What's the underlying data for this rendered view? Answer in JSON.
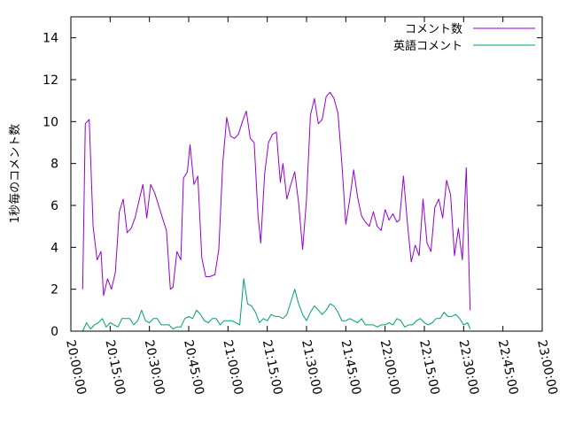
{
  "colors": {
    "series1": "#9400d3",
    "series2": "#009e73",
    "axis": "#000000",
    "background": "#ffffff"
  },
  "chart_data": {
    "type": "line",
    "title": "",
    "xlabel": "",
    "ylabel": "1秒毎のコメント数",
    "xlim": [
      "20:00:00",
      "23:00:00"
    ],
    "ylim": [
      0,
      15
    ],
    "x_ticks": [
      "20:00:00",
      "20:15:00",
      "20:30:00",
      "20:45:00",
      "21:00:00",
      "21:15:00",
      "21:30:00",
      "21:45:00",
      "22:00:00",
      "22:15:00",
      "22:30:00",
      "22:45:00",
      "23:00:00"
    ],
    "y_ticks": [
      0,
      2,
      4,
      6,
      8,
      10,
      12,
      14
    ],
    "grid": false,
    "legend_position": "top-right",
    "series": [
      {
        "name": "コメント数",
        "color": "#9400d3",
        "points": [
          [
            "20:04:30",
            2.0
          ],
          [
            "20:05:30",
            9.9
          ],
          [
            "20:07:00",
            10.1
          ],
          [
            "20:08:30",
            5.0
          ],
          [
            "20:10:00",
            3.4
          ],
          [
            "20:11:30",
            3.8
          ],
          [
            "20:12:30",
            1.7
          ],
          [
            "20:14:00",
            2.5
          ],
          [
            "20:15:30",
            2.0
          ],
          [
            "20:17:00",
            2.8
          ],
          [
            "20:18:30",
            5.7
          ],
          [
            "20:20:00",
            6.3
          ],
          [
            "20:21:30",
            4.7
          ],
          [
            "20:23:00",
            4.9
          ],
          [
            "20:24:30",
            5.4
          ],
          [
            "20:26:00",
            6.2
          ],
          [
            "20:27:30",
            7.0
          ],
          [
            "20:29:00",
            5.4
          ],
          [
            "20:30:30",
            7.0
          ],
          [
            "20:32:00",
            6.6
          ],
          [
            "20:33:30",
            6.0
          ],
          [
            "20:35:00",
            5.4
          ],
          [
            "20:36:30",
            4.8
          ],
          [
            "20:38:00",
            2.0
          ],
          [
            "20:39:00",
            2.1
          ],
          [
            "20:40:30",
            3.8
          ],
          [
            "20:42:00",
            3.4
          ],
          [
            "20:43:00",
            7.3
          ],
          [
            "20:44:30",
            7.6
          ],
          [
            "20:45:30",
            8.9
          ],
          [
            "20:47:00",
            7.0
          ],
          [
            "20:48:30",
            7.4
          ],
          [
            "20:50:00",
            3.5
          ],
          [
            "20:51:30",
            2.6
          ],
          [
            "20:53:00",
            2.6
          ],
          [
            "20:55:00",
            2.7
          ],
          [
            "20:56:30",
            3.9
          ],
          [
            "20:58:00",
            8.0
          ],
          [
            "20:59:30",
            10.2
          ],
          [
            "21:01:00",
            9.3
          ],
          [
            "21:02:30",
            9.2
          ],
          [
            "21:04:00",
            9.4
          ],
          [
            "21:05:30",
            10.0
          ],
          [
            "21:07:00",
            10.5
          ],
          [
            "21:08:30",
            9.2
          ],
          [
            "21:10:00",
            9.0
          ],
          [
            "21:11:30",
            5.5
          ],
          [
            "21:12:30",
            4.2
          ],
          [
            "21:14:00",
            7.5
          ],
          [
            "21:15:30",
            9.0
          ],
          [
            "21:17:00",
            9.4
          ],
          [
            "21:18:30",
            9.5
          ],
          [
            "21:20:00",
            7.1
          ],
          [
            "21:21:00",
            8.0
          ],
          [
            "21:22:30",
            6.3
          ],
          [
            "21:24:00",
            7.0
          ],
          [
            "21:25:30",
            7.6
          ],
          [
            "21:27:00",
            6.1
          ],
          [
            "21:28:30",
            3.9
          ],
          [
            "21:30:00",
            6.3
          ],
          [
            "21:31:30",
            10.3
          ],
          [
            "21:33:00",
            11.1
          ],
          [
            "21:34:30",
            9.9
          ],
          [
            "21:36:00",
            10.1
          ],
          [
            "21:37:30",
            11.2
          ],
          [
            "21:39:00",
            11.4
          ],
          [
            "21:40:30",
            11.1
          ],
          [
            "21:42:00",
            10.4
          ],
          [
            "21:43:30",
            8.0
          ],
          [
            "21:45:00",
            5.1
          ],
          [
            "21:46:30",
            6.3
          ],
          [
            "21:48:00",
            7.7
          ],
          [
            "21:49:30",
            6.4
          ],
          [
            "21:51:00",
            5.5
          ],
          [
            "21:52:30",
            5.2
          ],
          [
            "21:54:00",
            5.0
          ],
          [
            "21:55:30",
            5.7
          ],
          [
            "21:57:00",
            5.0
          ],
          [
            "21:58:30",
            4.8
          ],
          [
            "22:00:00",
            5.8
          ],
          [
            "22:01:30",
            5.3
          ],
          [
            "22:03:00",
            5.6
          ],
          [
            "22:04:30",
            5.2
          ],
          [
            "22:05:30",
            5.3
          ],
          [
            "22:07:00",
            7.4
          ],
          [
            "22:08:30",
            5.2
          ],
          [
            "22:10:00",
            3.3
          ],
          [
            "22:11:30",
            4.1
          ],
          [
            "22:13:00",
            3.6
          ],
          [
            "22:14:30",
            6.3
          ],
          [
            "22:16:00",
            4.2
          ],
          [
            "22:17:30",
            3.8
          ],
          [
            "22:19:00",
            5.9
          ],
          [
            "22:20:30",
            6.3
          ],
          [
            "22:22:00",
            5.4
          ],
          [
            "22:23:30",
            7.2
          ],
          [
            "22:25:00",
            6.5
          ],
          [
            "22:26:30",
            3.6
          ],
          [
            "22:28:00",
            4.9
          ],
          [
            "22:29:30",
            3.4
          ],
          [
            "22:31:00",
            7.8
          ],
          [
            "22:32:30",
            1.0
          ]
        ]
      },
      {
        "name": "英語コメント",
        "color": "#009e73",
        "points": [
          [
            "20:04:30",
            0.0
          ],
          [
            "20:06:00",
            0.4
          ],
          [
            "20:07:30",
            0.1
          ],
          [
            "20:09:00",
            0.3
          ],
          [
            "20:10:30",
            0.4
          ],
          [
            "20:12:00",
            0.6
          ],
          [
            "20:13:30",
            0.2
          ],
          [
            "20:15:00",
            0.4
          ],
          [
            "20:16:30",
            0.3
          ],
          [
            "20:18:00",
            0.2
          ],
          [
            "20:19:30",
            0.6
          ],
          [
            "20:21:00",
            0.6
          ],
          [
            "20:22:30",
            0.6
          ],
          [
            "20:24:00",
            0.3
          ],
          [
            "20:25:30",
            0.5
          ],
          [
            "20:27:00",
            1.0
          ],
          [
            "20:28:30",
            0.5
          ],
          [
            "20:30:00",
            0.4
          ],
          [
            "20:31:30",
            0.6
          ],
          [
            "20:33:00",
            0.6
          ],
          [
            "20:34:30",
            0.3
          ],
          [
            "20:36:00",
            0.3
          ],
          [
            "20:37:30",
            0.3
          ],
          [
            "20:39:00",
            0.1
          ],
          [
            "20:40:30",
            0.2
          ],
          [
            "20:42:00",
            0.2
          ],
          [
            "20:43:30",
            0.6
          ],
          [
            "20:45:00",
            0.7
          ],
          [
            "20:46:30",
            0.6
          ],
          [
            "20:48:00",
            1.0
          ],
          [
            "20:49:30",
            0.8
          ],
          [
            "20:51:00",
            0.5
          ],
          [
            "20:52:30",
            0.4
          ],
          [
            "20:54:00",
            0.6
          ],
          [
            "20:55:30",
            0.6
          ],
          [
            "20:57:00",
            0.3
          ],
          [
            "20:58:30",
            0.5
          ],
          [
            "21:00:00",
            0.5
          ],
          [
            "21:01:30",
            0.5
          ],
          [
            "21:03:00",
            0.4
          ],
          [
            "21:04:30",
            0.3
          ],
          [
            "21:06:00",
            2.5
          ],
          [
            "21:07:30",
            1.3
          ],
          [
            "21:09:00",
            1.2
          ],
          [
            "21:10:30",
            0.9
          ],
          [
            "21:12:00",
            0.4
          ],
          [
            "21:13:30",
            0.6
          ],
          [
            "21:15:00",
            0.5
          ],
          [
            "21:16:30",
            0.8
          ],
          [
            "21:18:00",
            0.7
          ],
          [
            "21:19:30",
            0.7
          ],
          [
            "21:21:00",
            0.6
          ],
          [
            "21:22:30",
            0.8
          ],
          [
            "21:24:00",
            1.4
          ],
          [
            "21:25:30",
            2.0
          ],
          [
            "21:27:00",
            1.3
          ],
          [
            "21:28:30",
            0.8
          ],
          [
            "21:30:00",
            0.5
          ],
          [
            "21:31:30",
            0.9
          ],
          [
            "21:33:00",
            1.2
          ],
          [
            "21:34:30",
            1.0
          ],
          [
            "21:36:00",
            0.8
          ],
          [
            "21:37:30",
            1.0
          ],
          [
            "21:39:00",
            1.3
          ],
          [
            "21:40:30",
            1.2
          ],
          [
            "21:42:00",
            0.9
          ],
          [
            "21:43:30",
            0.5
          ],
          [
            "21:45:00",
            0.5
          ],
          [
            "21:46:30",
            0.6
          ],
          [
            "21:48:00",
            0.5
          ],
          [
            "21:49:30",
            0.4
          ],
          [
            "21:51:00",
            0.6
          ],
          [
            "21:52:30",
            0.3
          ],
          [
            "21:54:00",
            0.3
          ],
          [
            "21:55:30",
            0.3
          ],
          [
            "21:57:00",
            0.2
          ],
          [
            "21:58:30",
            0.3
          ],
          [
            "22:00:00",
            0.3
          ],
          [
            "22:01:30",
            0.4
          ],
          [
            "22:03:00",
            0.3
          ],
          [
            "22:04:30",
            0.6
          ],
          [
            "22:06:00",
            0.5
          ],
          [
            "22:07:30",
            0.2
          ],
          [
            "22:09:00",
            0.3
          ],
          [
            "22:10:30",
            0.3
          ],
          [
            "22:12:00",
            0.5
          ],
          [
            "22:13:30",
            0.6
          ],
          [
            "22:15:00",
            0.4
          ],
          [
            "22:16:30",
            0.3
          ],
          [
            "22:18:00",
            0.4
          ],
          [
            "22:19:30",
            0.6
          ],
          [
            "22:21:00",
            0.6
          ],
          [
            "22:22:30",
            0.9
          ],
          [
            "22:24:00",
            0.7
          ],
          [
            "22:25:30",
            0.7
          ],
          [
            "22:27:00",
            0.8
          ],
          [
            "22:28:30",
            0.6
          ],
          [
            "22:30:00",
            0.3
          ],
          [
            "22:31:30",
            0.4
          ],
          [
            "22:32:30",
            0.1
          ]
        ]
      }
    ]
  }
}
